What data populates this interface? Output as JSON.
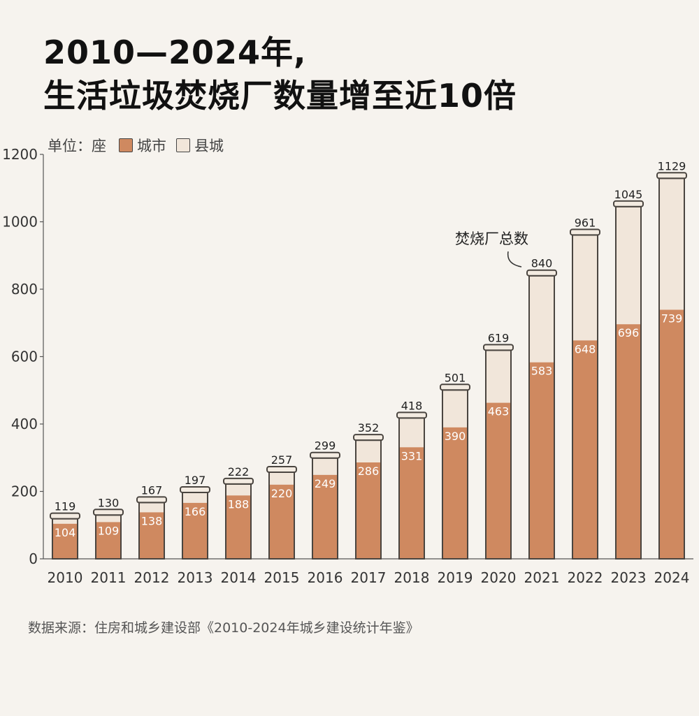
{
  "title_line1": "2010—2024年,",
  "title_line2": "生活垃圾焚烧厂数量增至近10倍",
  "legend": {
    "unit": "单位：座",
    "city": "城市",
    "county": "县城"
  },
  "annotation": "焚烧厂总数",
  "source": "数据来源：住房和城乡建设部《2010-2024年城乡建设统计年鉴》",
  "colors": {
    "city": "#cf8960",
    "county": "#f1e6da",
    "outline": "#4a4540"
  },
  "chart_data": {
    "type": "bar",
    "stacked": true,
    "categories": [
      "2010",
      "2011",
      "2012",
      "2013",
      "2014",
      "2015",
      "2016",
      "2017",
      "2018",
      "2019",
      "2020",
      "2021",
      "2022",
      "2023",
      "2024"
    ],
    "series": [
      {
        "name": "城市",
        "values": [
          104,
          109,
          138,
          166,
          188,
          220,
          249,
          286,
          331,
          390,
          463,
          583,
          648,
          696,
          739
        ]
      },
      {
        "name": "县城",
        "values": [
          15,
          21,
          29,
          31,
          34,
          37,
          50,
          66,
          87,
          111,
          156,
          257,
          313,
          349,
          390
        ]
      }
    ],
    "totals": [
      119,
      130,
      167,
      197,
      222,
      257,
      299,
      352,
      418,
      501,
      619,
      840,
      961,
      1045,
      1129
    ],
    "yticks": [
      0,
      200,
      400,
      600,
      800,
      1000,
      1200
    ],
    "ylim": [
      0,
      1200
    ],
    "grid": false,
    "legend_position": "top-left"
  }
}
